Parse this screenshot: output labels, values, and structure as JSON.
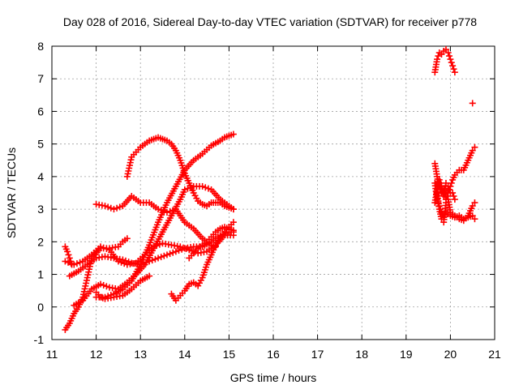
{
  "chart_data": {
    "type": "scatter",
    "title": "Day 028 of 2016, Sidereal Day-to-day VTEC variation (SDTVAR) for receiver p778",
    "xlabel": "GPS time / hours",
    "ylabel": "SDTVAR / TECUs",
    "xlim": [
      11,
      21
    ],
    "ylim": [
      -1,
      8
    ],
    "xticks": [
      "11",
      "12",
      "13",
      "14",
      "15",
      "16",
      "17",
      "18",
      "19",
      "20",
      "21"
    ],
    "yticks": [
      "-1",
      "0",
      "1",
      "2",
      "3",
      "4",
      "5",
      "6",
      "7",
      "8"
    ],
    "grid": true,
    "marker": "plus",
    "color": "#ff0000",
    "series": [
      {
        "x": [
          12.7,
          12.8,
          12.9,
          13.0,
          13.1,
          13.2,
          13.3,
          13.4,
          13.5,
          13.6,
          13.7,
          13.8,
          13.9,
          14.0,
          14.1,
          14.2,
          14.3,
          14.4,
          14.5,
          14.6,
          14.7,
          14.8,
          14.9,
          15.0,
          15.1
        ],
        "y": [
          4.0,
          4.6,
          4.75,
          4.9,
          5.0,
          5.1,
          5.15,
          5.2,
          5.15,
          5.1,
          5.0,
          4.8,
          4.5,
          4.1,
          3.8,
          3.5,
          3.25,
          3.15,
          3.1,
          3.2,
          3.2,
          3.2,
          3.1,
          3.05,
          3.0
        ]
      },
      {
        "x": [
          12.0,
          12.2,
          12.4,
          12.6,
          12.8,
          13.0,
          13.2,
          13.4,
          13.6,
          13.8,
          14.0,
          14.2,
          14.4,
          14.6,
          14.7
        ],
        "y": [
          3.15,
          3.1,
          3.0,
          3.1,
          3.4,
          3.2,
          3.2,
          3.0,
          2.9,
          3.0,
          2.6,
          2.4,
          2.1,
          1.9,
          1.85
        ]
      },
      {
        "x": [
          12.0,
          12.2,
          12.4,
          12.6,
          12.8,
          13.0,
          13.2,
          13.4,
          13.6,
          13.8,
          14.0,
          14.2,
          14.4,
          14.6,
          14.8,
          14.9,
          15.0,
          15.1
        ],
        "y": [
          0.3,
          0.3,
          0.4,
          0.55,
          0.8,
          1.3,
          1.9,
          2.6,
          3.2,
          3.7,
          4.2,
          4.5,
          4.7,
          4.95,
          5.1,
          5.2,
          5.25,
          5.3
        ]
      },
      {
        "x": [
          11.5,
          11.7,
          11.9,
          12.1,
          12.3,
          12.5,
          12.7,
          12.9,
          13.1,
          13.3,
          13.5,
          13.7,
          13.9,
          14.0,
          14.2,
          14.4,
          14.6,
          14.8,
          15.0,
          15.1
        ],
        "y": [
          0.05,
          0.2,
          0.55,
          0.7,
          0.6,
          0.55,
          0.75,
          1.0,
          1.3,
          1.8,
          2.3,
          2.8,
          3.3,
          3.6,
          3.7,
          3.7,
          3.6,
          3.3,
          3.1,
          3.0
        ]
      },
      {
        "x": [
          11.4,
          11.6,
          11.8,
          12.0,
          12.2,
          12.4,
          12.6,
          12.8,
          13.0,
          13.2,
          13.4,
          13.6,
          13.8,
          14.0,
          14.2,
          14.4,
          14.6,
          14.8,
          15.0,
          15.1
        ],
        "y": [
          0.95,
          1.1,
          1.3,
          1.5,
          1.55,
          1.5,
          1.45,
          1.35,
          1.3,
          1.4,
          1.5,
          1.6,
          1.7,
          1.8,
          1.85,
          1.85,
          2.0,
          2.2,
          2.3,
          2.3
        ]
      },
      {
        "x": [
          11.3,
          11.5,
          11.7,
          11.9,
          12.1,
          12.3,
          12.5,
          12.7,
          12.9,
          13.1,
          13.3,
          13.5,
          13.7,
          13.9,
          14.1,
          14.3,
          14.5,
          14.7,
          14.9,
          15.1
        ],
        "y": [
          1.4,
          1.3,
          1.4,
          1.6,
          1.85,
          1.75,
          1.4,
          1.3,
          1.35,
          1.6,
          1.85,
          1.95,
          1.9,
          1.85,
          1.75,
          1.65,
          1.7,
          1.9,
          2.2,
          2.2
        ]
      },
      {
        "x": [
          11.3,
          11.4,
          11.5,
          11.6,
          11.7,
          11.9,
          12.1,
          12.3,
          12.5,
          12.6,
          12.7
        ],
        "y": [
          -0.7,
          -0.5,
          -0.2,
          0.0,
          0.3,
          1.5,
          1.8,
          1.8,
          1.85,
          2.0,
          2.1
        ]
      },
      {
        "x": [
          11.3,
          11.35,
          11.4,
          11.45
        ],
        "y": [
          1.85,
          1.7,
          1.5,
          1.3
        ]
      },
      {
        "x": [
          12.0,
          12.1,
          12.2,
          12.4,
          12.6,
          12.8,
          13.0,
          13.2
        ],
        "y": [
          0.45,
          0.3,
          0.25,
          0.3,
          0.35,
          0.55,
          0.8,
          0.95
        ]
      },
      {
        "x": [
          13.7,
          13.8,
          13.9,
          14.0,
          14.1,
          14.2,
          14.3,
          14.4,
          14.5,
          14.6,
          14.7,
          14.8,
          14.9,
          15.0,
          15.1
        ],
        "y": [
          0.4,
          0.2,
          0.35,
          0.5,
          0.7,
          0.75,
          0.65,
          0.9,
          1.3,
          1.6,
          1.9,
          2.1,
          2.3,
          2.45,
          2.6
        ]
      },
      {
        "x": [
          14.1,
          14.2,
          14.3,
          14.4,
          14.5,
          14.6,
          14.7,
          14.8,
          14.9,
          15.0,
          15.1
        ],
        "y": [
          1.5,
          1.65,
          1.8,
          1.9,
          2.0,
          2.15,
          2.3,
          2.4,
          2.45,
          2.4,
          2.35
        ]
      },
      {
        "x": [
          19.65,
          19.7,
          19.75,
          19.8,
          19.85,
          19.9,
          19.95,
          20.0,
          20.05,
          20.1
        ],
        "y": [
          7.2,
          7.6,
          7.8,
          7.75,
          7.85,
          7.9,
          7.8,
          7.6,
          7.4,
          7.2
        ]
      },
      {
        "x": [
          20.5
        ],
        "y": [
          6.25
        ]
      },
      {
        "x": [
          19.65,
          19.7,
          19.75,
          19.8,
          19.85,
          19.9,
          19.95,
          20.0,
          20.05,
          20.1,
          20.2,
          20.3,
          20.4,
          20.5,
          20.55
        ],
        "y": [
          4.4,
          4.0,
          3.7,
          3.5,
          3.6,
          3.3,
          3.5,
          3.7,
          3.9,
          4.05,
          4.2,
          4.2,
          4.5,
          4.8,
          4.9
        ]
      },
      {
        "x": [
          19.65,
          19.7,
          19.75,
          19.8,
          19.85,
          19.9,
          19.95,
          20.0,
          20.05,
          20.1
        ],
        "y": [
          3.2,
          3.6,
          3.9,
          3.7,
          3.4,
          3.8,
          3.7,
          3.5,
          3.5,
          3.3
        ]
      },
      {
        "x": [
          19.65,
          19.7,
          19.75,
          19.8,
          19.85,
          19.9,
          20.0,
          20.1,
          20.2,
          20.3,
          20.4,
          20.5,
          20.55
        ],
        "y": [
          3.8,
          3.3,
          3.1,
          2.9,
          2.75,
          2.9,
          2.8,
          2.75,
          2.8,
          2.7,
          2.75,
          2.8,
          2.7
        ]
      },
      {
        "x": [
          19.7,
          19.75,
          19.8,
          19.85,
          19.9,
          19.95,
          20.0,
          20.1,
          20.2,
          20.3,
          20.4,
          20.5,
          20.55
        ],
        "y": [
          3.5,
          3.0,
          2.7,
          2.6,
          3.2,
          3.3,
          2.9,
          2.8,
          2.7,
          2.65,
          2.8,
          3.1,
          3.2
        ]
      }
    ]
  }
}
